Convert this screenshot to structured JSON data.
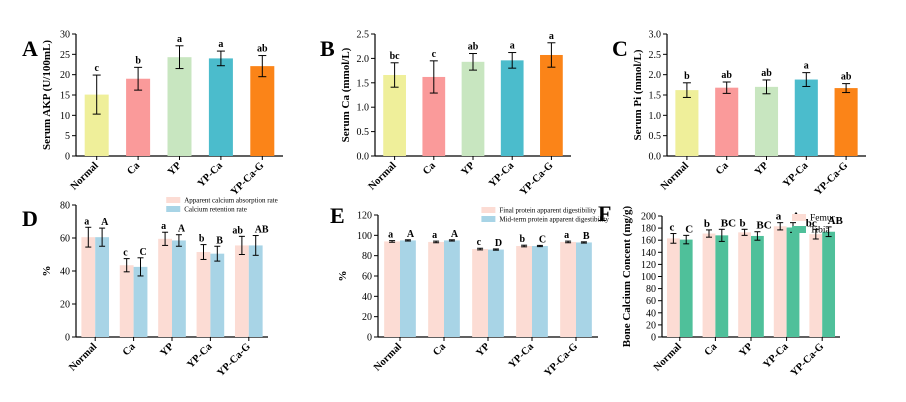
{
  "categories": [
    "Normal",
    "Ca",
    "YP",
    "YP-Ca",
    "YP-Ca-G"
  ],
  "chart_data": [
    {
      "id": "A",
      "type": "bar",
      "title": "A",
      "xlabel": "",
      "ylabel": "Serum AKP (U/100mL)",
      "ylim": [
        0,
        30
      ],
      "yticks": [
        0,
        5,
        10,
        15,
        20,
        25,
        30
      ],
      "categories": [
        "Normal",
        "Ca",
        "YP",
        "YP-Ca",
        "YP-Ca-G"
      ],
      "colors": [
        "#efef9a",
        "#fa9a9a",
        "#c8e6c0",
        "#4bbccc",
        "#fb8418"
      ],
      "values": [
        15.1,
        19.0,
        24.3,
        24.0,
        22.1
      ],
      "errors": [
        4.8,
        2.8,
        2.8,
        1.8,
        2.6
      ],
      "sig": [
        "c",
        "b",
        "a",
        "a",
        "ab"
      ]
    },
    {
      "id": "B",
      "type": "bar",
      "title": "B",
      "xlabel": "",
      "ylabel": "Serum Ca (mmol/L)",
      "ylim": [
        0,
        2.5
      ],
      "yticks": [
        0.0,
        0.5,
        1.0,
        1.5,
        2.0,
        2.5
      ],
      "categories": [
        "Normal",
        "Ca",
        "YP",
        "YP-Ca",
        "YP-Ca-G"
      ],
      "colors": [
        "#efef9a",
        "#fa9a9a",
        "#c8e6c0",
        "#4bbccc",
        "#fb8418"
      ],
      "values": [
        1.66,
        1.62,
        1.93,
        1.96,
        2.07
      ],
      "errors": [
        0.25,
        0.33,
        0.17,
        0.16,
        0.25
      ],
      "sig": [
        "bc",
        "c",
        "ab",
        "a",
        "a"
      ]
    },
    {
      "id": "C",
      "type": "bar",
      "title": "C",
      "xlabel": "",
      "ylabel": "Serum Pi (mmol/L)",
      "ylim": [
        0,
        3.0
      ],
      "yticks": [
        0.0,
        0.5,
        1.0,
        1.5,
        2.0,
        2.5,
        3.0
      ],
      "categories": [
        "Normal",
        "Ca",
        "YP",
        "YP-Ca",
        "YP-Ca-G"
      ],
      "colors": [
        "#efef9a",
        "#fa9a9a",
        "#c8e6c0",
        "#4bbccc",
        "#fb8418"
      ],
      "values": [
        1.62,
        1.68,
        1.7,
        1.88,
        1.67
      ],
      "errors": [
        0.18,
        0.14,
        0.17,
        0.17,
        0.11
      ],
      "sig": [
        "b",
        "ab",
        "ab",
        "a",
        "ab"
      ]
    },
    {
      "id": "D",
      "type": "bar",
      "title": "D",
      "xlabel": "",
      "ylabel": "%",
      "ylim": [
        0,
        80
      ],
      "yticks": [
        0,
        20,
        40,
        60,
        80
      ],
      "categories": [
        "Normal",
        "Ca",
        "YP",
        "YP-Ca",
        "YP-Ca-G"
      ],
      "legend": {
        "position": "top-right",
        "style": "small"
      },
      "series": [
        {
          "name": "Apparent calcium absorption rate",
          "color": "#fcdcd4",
          "values": [
            60.5,
            43.5,
            59.5,
            51.5,
            55.5
          ],
          "errors": [
            6.0,
            4.0,
            4.0,
            4.5,
            5.5
          ],
          "sig": [
            "a",
            "c",
            "a",
            "b",
            "ab"
          ]
        },
        {
          "name": "Calcium retention rate",
          "color": "#a8d4e6",
          "values": [
            60.5,
            42.5,
            58.5,
            50.5,
            55.5
          ],
          "errors": [
            5.5,
            5.5,
            3.5,
            4.5,
            6.0
          ],
          "sig": [
            "A",
            "C",
            "A",
            "B",
            "AB"
          ]
        }
      ]
    },
    {
      "id": "E",
      "type": "bar",
      "title": "E",
      "xlabel": "",
      "ylabel": "%",
      "ylim": [
        0,
        120
      ],
      "yticks": [
        0,
        20,
        40,
        60,
        80,
        100,
        120
      ],
      "categories": [
        "Normal",
        "Ca",
        "YP",
        "YP-Ca",
        "YP-Ca-G"
      ],
      "legend": {
        "position": "top-right",
        "style": "small"
      },
      "series": [
        {
          "name": "Final protein apparent digestibility",
          "color": "#fcdcd4",
          "values": [
            94.0,
            93.5,
            86.5,
            89.5,
            93.5
          ],
          "errors": [
            0.8,
            0.8,
            0.8,
            0.8,
            0.8
          ],
          "sig": [
            "a",
            "a",
            "c",
            "b",
            "a"
          ]
        },
        {
          "name": "Mid-term protein apparent digestibility",
          "color": "#a8d4e6",
          "values": [
            95.0,
            95.0,
            86.0,
            89.5,
            93.0
          ],
          "errors": [
            0.6,
            0.6,
            0.6,
            0.6,
            0.6
          ],
          "sig": [
            "A",
            "A",
            "D",
            "C",
            "B"
          ]
        }
      ]
    },
    {
      "id": "F",
      "type": "bar",
      "title": "F",
      "xlabel": "",
      "ylabel": "Bone Calcium Concent (mg/g)",
      "ylim": [
        0,
        200
      ],
      "yticks": [
        0,
        20,
        40,
        60,
        80,
        100,
        120,
        140,
        160,
        180,
        200
      ],
      "categories": [
        "Normal",
        "Ca",
        "YP",
        "YP-Ca",
        "YP-Ca-G"
      ],
      "legend": {
        "position": "top-right",
        "style": "large"
      },
      "series": [
        {
          "name": "Femur",
          "color": "#fcdcd4",
          "values": [
            163,
            171,
            173,
            183,
            170
          ],
          "errors": [
            8,
            6,
            5,
            6,
            8
          ],
          "sig": [
            "c",
            "b",
            "b",
            "a",
            "bc"
          ]
        },
        {
          "name": "Tibia",
          "color": "#4fc09a",
          "values": [
            161,
            168,
            167,
            181,
            174
          ],
          "errors": [
            7,
            10,
            7,
            8,
            8
          ],
          "sig": [
            "C",
            "BC",
            "BC",
            "A",
            "AB"
          ]
        }
      ]
    }
  ]
}
